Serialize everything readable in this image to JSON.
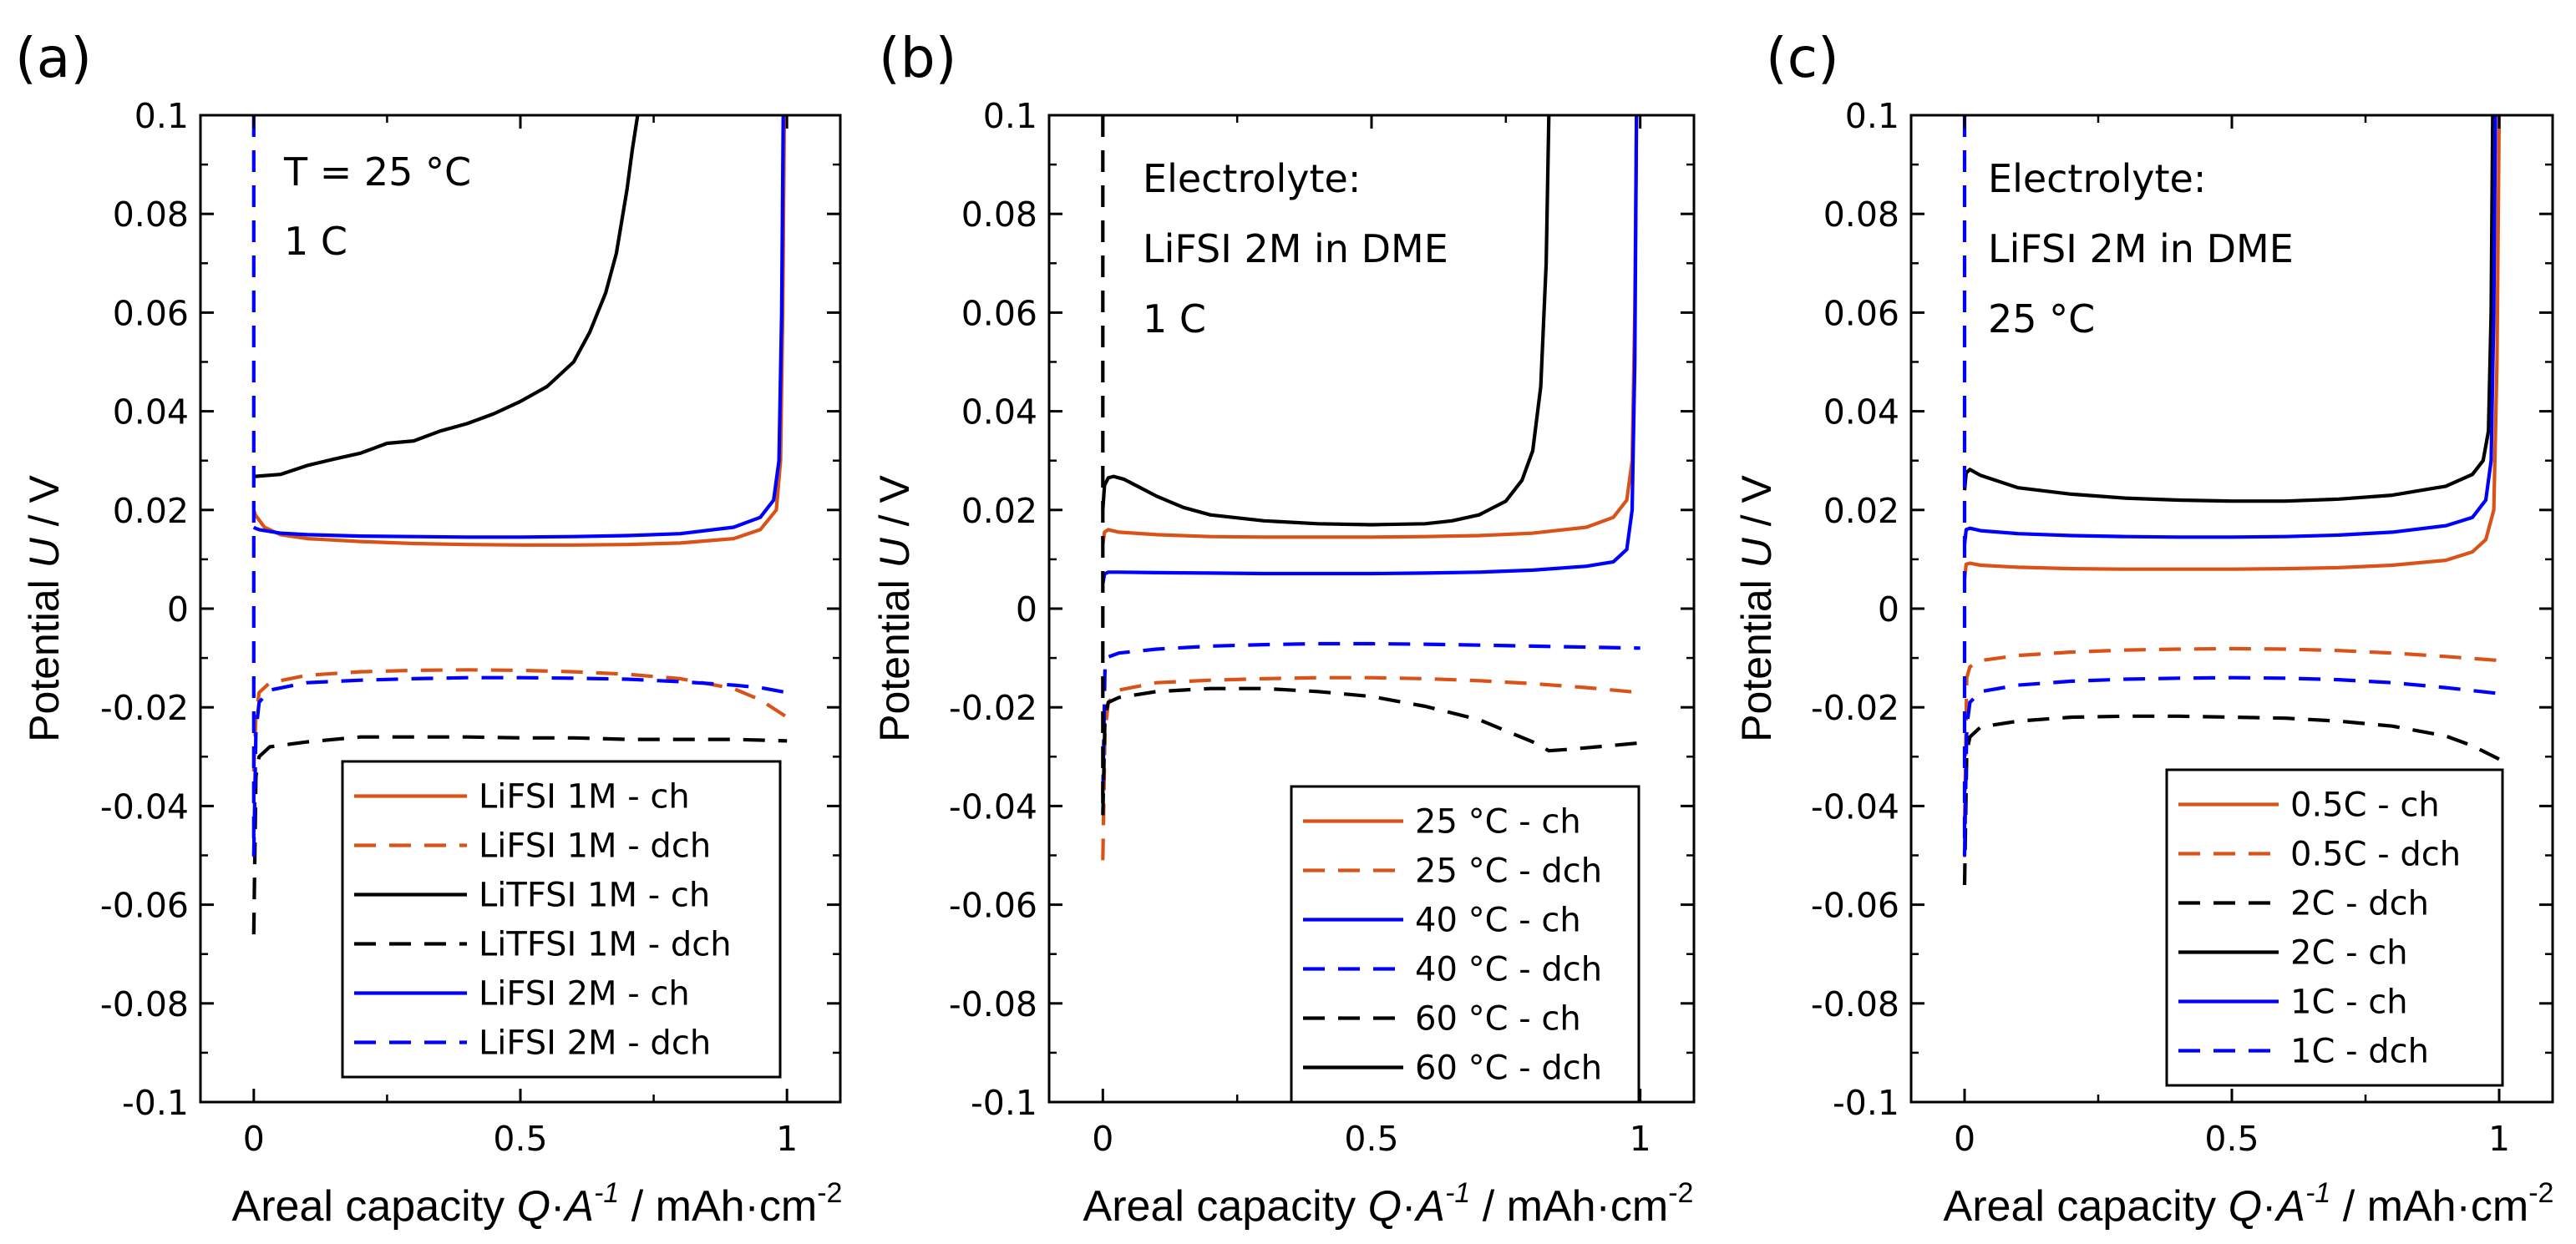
{
  "panels": [
    {
      "letter": "(a)",
      "ylabel_prefix": "Potential ",
      "ylabel_var": "U",
      "ylabel_unit": " / V",
      "xlabel_prefix": "Areal capacity ",
      "xlabel_var_q": "Q",
      "xlabel_dot": "·",
      "xlabel_var_a": "A",
      "xlabel_exp": "-1",
      "xlabel_unit": " / mAh·cm",
      "xlabel_unit_exp": "-2",
      "annotation": [
        "T = 25 °C",
        "1 C"
      ]
    },
    {
      "letter": "(b)",
      "ylabel_prefix": "Potential ",
      "ylabel_var": "U",
      "ylabel_unit": " / V",
      "xlabel_prefix": "Areal capacity ",
      "xlabel_var_q": "Q",
      "xlabel_dot": "·",
      "xlabel_var_a": "A",
      "xlabel_exp": "-1",
      "xlabel_unit": " / mAh·cm",
      "xlabel_unit_exp": "-2",
      "annotation": [
        "Electrolyte:",
        "LiFSI 2M in DME",
        "1 C"
      ]
    },
    {
      "letter": "(c)",
      "ylabel_prefix": "Potential ",
      "ylabel_var": "U",
      "ylabel_unit": " / V",
      "xlabel_prefix": "Areal capacity ",
      "xlabel_var_q": "Q",
      "xlabel_dot": "·",
      "xlabel_var_a": "A",
      "xlabel_exp": "-1",
      "xlabel_unit": " / mAh·cm",
      "xlabel_unit_exp": "-2",
      "annotation": [
        "Electrolyte:",
        "LiFSI 2M in DME",
        "25 °C"
      ]
    }
  ],
  "colors": {
    "orange": "#d95319",
    "black": "#000000",
    "blue": "#0000ff"
  },
  "chart_data": [
    {
      "type": "line",
      "title": "(a)",
      "xlabel": "Areal capacity Q·A-1 / mAh·cm-2",
      "ylabel": "Potential U / V",
      "xlim": [
        -0.1,
        1.1
      ],
      "ylim": [
        -0.1,
        0.1
      ],
      "xticks": [
        0,
        0.5,
        1
      ],
      "xtick_labels": [
        "0",
        "0.5",
        "1"
      ],
      "yticks": [
        -0.1,
        -0.08,
        -0.06,
        -0.04,
        -0.02,
        0,
        0.02,
        0.04,
        0.06,
        0.08,
        0.1
      ],
      "ytick_labels": [
        "-0.1",
        "-0.08",
        "-0.06",
        "-0.04",
        "-0.02",
        "0",
        "0.02",
        "0.04",
        "0.06",
        "0.08",
        "0.1"
      ],
      "legend_position": "bottom-right",
      "series": [
        {
          "name": "LiFSI 1M - ch",
          "color": "#d95319",
          "dash": "solid",
          "x": [
            0,
            0.003,
            0.02,
            0.05,
            0.1,
            0.2,
            0.3,
            0.4,
            0.5,
            0.6,
            0.7,
            0.8,
            0.9,
            0.95,
            0.98,
            0.988,
            0.992,
            0.995
          ],
          "y": [
            0.02,
            0.019,
            0.0165,
            0.015,
            0.0142,
            0.0136,
            0.0132,
            0.013,
            0.0129,
            0.0129,
            0.013,
            0.0133,
            0.0142,
            0.016,
            0.02,
            0.03,
            0.06,
            0.1
          ]
        },
        {
          "name": "LiFSI 1M - dch",
          "color": "#d95319",
          "dash": "dashed",
          "x": [
            0,
            0.004,
            0.01,
            0.03,
            0.1,
            0.2,
            0.3,
            0.4,
            0.5,
            0.6,
            0.7,
            0.8,
            0.9,
            0.95,
            1.0
          ],
          "y": [
            -0.033,
            -0.022,
            -0.017,
            -0.015,
            -0.0135,
            -0.0128,
            -0.0125,
            -0.0124,
            -0.0125,
            -0.0128,
            -0.0133,
            -0.0142,
            -0.0162,
            -0.0185,
            -0.022
          ]
        },
        {
          "name": "LiTFSI 1M - ch",
          "color": "#000000",
          "dash": "solid",
          "x": [
            0,
            0.002,
            0.05,
            0.1,
            0.15,
            0.2,
            0.25,
            0.3,
            0.35,
            0.4,
            0.45,
            0.5,
            0.55,
            0.6,
            0.63,
            0.66,
            0.68,
            0.7,
            0.71,
            0.72
          ],
          "y": [
            0.027,
            0.0268,
            0.0272,
            0.029,
            0.0303,
            0.0315,
            0.0335,
            0.034,
            0.036,
            0.0375,
            0.0395,
            0.042,
            0.045,
            0.05,
            0.056,
            0.064,
            0.072,
            0.085,
            0.093,
            0.1
          ]
        },
        {
          "name": "LiTFSI 1M - dch",
          "color": "#000000",
          "dash": "dashed",
          "x": [
            0,
            0.004,
            0.01,
            0.03,
            0.1,
            0.2,
            0.3,
            0.4,
            0.5,
            0.6,
            0.7,
            0.8,
            0.9,
            1.0
          ],
          "y": [
            -0.066,
            -0.034,
            -0.03,
            -0.028,
            -0.027,
            -0.026,
            -0.026,
            -0.026,
            -0.0262,
            -0.0262,
            -0.0265,
            -0.0265,
            -0.0265,
            -0.0268
          ]
        },
        {
          "name": "LiFSI 2M - ch",
          "color": "#0000ff",
          "dash": "solid",
          "x": [
            0,
            0.003,
            0.01,
            0.05,
            0.1,
            0.2,
            0.3,
            0.4,
            0.5,
            0.6,
            0.7,
            0.8,
            0.9,
            0.95,
            0.975,
            0.985,
            0.99,
            0.993
          ],
          "y": [
            0.0165,
            0.0163,
            0.016,
            0.0153,
            0.015,
            0.0147,
            0.0146,
            0.0145,
            0.0145,
            0.0146,
            0.0148,
            0.0152,
            0.0165,
            0.0185,
            0.022,
            0.03,
            0.06,
            0.1
          ]
        },
        {
          "name": "LiFSI 2M - dch",
          "color": "#0000ff",
          "dash": "dashed",
          "x": [
            0,
            0.0,
            0.004,
            0.01,
            0.03,
            0.1,
            0.2,
            0.3,
            0.4,
            0.5,
            0.6,
            0.7,
            0.8,
            0.9,
            0.95,
            1.0
          ],
          "y": [
            0.1,
            -0.05,
            -0.025,
            -0.019,
            -0.0165,
            -0.015,
            -0.0145,
            -0.0142,
            -0.014,
            -0.014,
            -0.0141,
            -0.0143,
            -0.0148,
            -0.0155,
            -0.016,
            -0.017
          ]
        }
      ]
    },
    {
      "type": "line",
      "title": "(b)",
      "xlabel": "Areal capacity Q·A-1 / mAh·cm-2",
      "ylabel": "Potential U / V",
      "xlim": [
        -0.1,
        1.1
      ],
      "ylim": [
        -0.1,
        0.1
      ],
      "xticks": [
        0,
        0.5,
        1
      ],
      "xtick_labels": [
        "0",
        "0.5",
        "1"
      ],
      "yticks": [
        -0.1,
        -0.08,
        -0.06,
        -0.04,
        -0.02,
        0,
        0.02,
        0.04,
        0.06,
        0.08,
        0.1
      ],
      "ytick_labels": [
        "-0.1",
        "-0.08",
        "-0.06",
        "-0.04",
        "-0.02",
        "0",
        "0.02",
        "0.04",
        "0.06",
        "0.08",
        "0.1"
      ],
      "legend_position": "bottom-right",
      "series": [
        {
          "name": "25 °C - ch",
          "color": "#d95319",
          "dash": "solid",
          "x": [
            0,
            0.003,
            0.01,
            0.03,
            0.1,
            0.2,
            0.3,
            0.4,
            0.5,
            0.6,
            0.7,
            0.8,
            0.9,
            0.95,
            0.975,
            0.985,
            0.99,
            0.993
          ],
          "y": [
            0.013,
            0.0155,
            0.016,
            0.0155,
            0.015,
            0.0146,
            0.0145,
            0.0145,
            0.0145,
            0.0146,
            0.0148,
            0.0153,
            0.0165,
            0.0185,
            0.022,
            0.03,
            0.06,
            0.1
          ]
        },
        {
          "name": "25 °C - dch",
          "color": "#d95319",
          "dash": "dashed",
          "x": [
            0,
            0.004,
            0.01,
            0.03,
            0.1,
            0.2,
            0.3,
            0.4,
            0.5,
            0.6,
            0.7,
            0.8,
            0.9,
            1.0
          ],
          "y": [
            -0.051,
            -0.025,
            -0.019,
            -0.0165,
            -0.015,
            -0.0145,
            -0.0142,
            -0.014,
            -0.014,
            -0.0142,
            -0.0146,
            -0.0152,
            -0.016,
            -0.017
          ]
        },
        {
          "name": "40 °C - ch",
          "color": "#0000ff",
          "dash": "solid",
          "x": [
            0,
            0.003,
            0.01,
            0.03,
            0.1,
            0.2,
            0.3,
            0.4,
            0.5,
            0.6,
            0.7,
            0.8,
            0.9,
            0.95,
            0.975,
            0.985,
            0.99,
            0.993
          ],
          "y": [
            0.005,
            0.007,
            0.0074,
            0.0074,
            0.0073,
            0.0072,
            0.0071,
            0.0071,
            0.0071,
            0.0072,
            0.0074,
            0.0078,
            0.0086,
            0.0095,
            0.012,
            0.02,
            0.05,
            0.1
          ]
        },
        {
          "name": "40 °C - dch",
          "color": "#0000ff",
          "dash": "dashed",
          "x": [
            0,
            0.004,
            0.01,
            0.03,
            0.1,
            0.2,
            0.3,
            0.4,
            0.5,
            0.6,
            0.7,
            0.8,
            0.9,
            1.0
          ],
          "y": [
            -0.038,
            -0.012,
            -0.0098,
            -0.009,
            -0.0082,
            -0.0076,
            -0.0073,
            -0.0071,
            -0.0071,
            -0.0072,
            -0.0074,
            -0.0076,
            -0.0078,
            -0.008
          ]
        },
        {
          "name": "60 °C - ch",
          "color": "#000000",
          "dash": "dashed",
          "x": [
            0,
            0.0,
            0.004,
            0.01,
            0.03,
            0.1,
            0.2,
            0.3,
            0.4,
            0.5,
            0.6,
            0.7,
            0.8,
            0.83,
            0.87,
            0.92,
            1.0
          ],
          "y": [
            0.1,
            -0.042,
            -0.022,
            -0.019,
            -0.018,
            -0.0168,
            -0.0162,
            -0.0162,
            -0.0168,
            -0.0178,
            -0.0198,
            -0.0225,
            -0.027,
            -0.0288,
            -0.0285,
            -0.028,
            -0.0272
          ]
        },
        {
          "name": "60 °C - dch",
          "color": "#000000",
          "dash": "solid",
          "x": [
            0,
            0.003,
            0.01,
            0.02,
            0.04,
            0.07,
            0.1,
            0.15,
            0.2,
            0.3,
            0.4,
            0.5,
            0.6,
            0.65,
            0.7,
            0.75,
            0.78,
            0.8,
            0.815,
            0.825,
            0.83
          ],
          "y": [
            0.02,
            0.025,
            0.0265,
            0.0268,
            0.0262,
            0.0245,
            0.0228,
            0.0205,
            0.019,
            0.0178,
            0.0172,
            0.017,
            0.0172,
            0.0178,
            0.019,
            0.0218,
            0.026,
            0.032,
            0.045,
            0.07,
            0.1
          ]
        }
      ]
    },
    {
      "type": "line",
      "title": "(c)",
      "xlabel": "Areal capacity Q·A-1 / mAh·cm-2",
      "ylabel": "Potential U / V",
      "xlim": [
        -0.1,
        1.1
      ],
      "ylim": [
        -0.1,
        0.1
      ],
      "xticks": [
        0,
        0.5,
        1
      ],
      "xtick_labels": [
        "0",
        "0.5",
        "1"
      ],
      "yticks": [
        -0.1,
        -0.08,
        -0.06,
        -0.04,
        -0.02,
        0,
        0.02,
        0.04,
        0.06,
        0.08,
        0.1
      ],
      "ytick_labels": [
        "-0.1",
        "-0.08",
        "-0.06",
        "-0.04",
        "-0.02",
        "0",
        "0.02",
        "0.04",
        "0.06",
        "0.08",
        "0.1"
      ],
      "legend_position": "bottom-right",
      "series": [
        {
          "name": "0.5C - ch",
          "color": "#d95319",
          "dash": "solid",
          "x": [
            0,
            0.003,
            0.01,
            0.03,
            0.1,
            0.2,
            0.3,
            0.4,
            0.5,
            0.6,
            0.7,
            0.8,
            0.9,
            0.95,
            0.975,
            0.99,
            0.996,
            1.0
          ],
          "y": [
            0.006,
            0.009,
            0.0092,
            0.0088,
            0.0084,
            0.0081,
            0.008,
            0.008,
            0.008,
            0.0081,
            0.0083,
            0.0088,
            0.0098,
            0.0115,
            0.014,
            0.02,
            0.05,
            0.1
          ]
        },
        {
          "name": "0.5C - dch",
          "color": "#d95319",
          "dash": "dashed",
          "x": [
            0,
            0.004,
            0.01,
            0.03,
            0.1,
            0.2,
            0.3,
            0.4,
            0.5,
            0.6,
            0.7,
            0.8,
            0.9,
            1.0
          ],
          "y": [
            -0.044,
            -0.014,
            -0.0118,
            -0.0105,
            -0.0095,
            -0.0088,
            -0.0084,
            -0.0082,
            -0.0081,
            -0.0082,
            -0.0085,
            -0.009,
            -0.0097,
            -0.0105
          ]
        },
        {
          "name": "2C - dch",
          "color": "#000000",
          "dash": "dashed",
          "x": [
            0,
            0.004,
            0.01,
            0.03,
            0.1,
            0.2,
            0.3,
            0.4,
            0.5,
            0.6,
            0.7,
            0.8,
            0.9,
            0.95,
            1.0
          ],
          "y": [
            -0.056,
            -0.029,
            -0.026,
            -0.024,
            -0.0228,
            -0.022,
            -0.0218,
            -0.0218,
            -0.022,
            -0.0222,
            -0.0228,
            -0.0238,
            -0.0258,
            -0.0278,
            -0.0305
          ]
        },
        {
          "name": "2C - ch",
          "color": "#000000",
          "dash": "solid",
          "x": [
            0,
            0.003,
            0.01,
            0.03,
            0.1,
            0.2,
            0.3,
            0.4,
            0.5,
            0.6,
            0.7,
            0.8,
            0.9,
            0.95,
            0.97,
            0.98,
            0.985,
            0.988
          ],
          "y": [
            0.024,
            0.0275,
            0.0282,
            0.027,
            0.0245,
            0.0232,
            0.0224,
            0.022,
            0.0218,
            0.0218,
            0.0222,
            0.023,
            0.0248,
            0.0272,
            0.03,
            0.036,
            0.06,
            0.1
          ]
        },
        {
          "name": "1C - ch",
          "color": "#0000ff",
          "dash": "solid",
          "x": [
            0,
            0.003,
            0.01,
            0.03,
            0.1,
            0.2,
            0.3,
            0.4,
            0.5,
            0.6,
            0.7,
            0.8,
            0.9,
            0.95,
            0.975,
            0.985,
            0.99,
            0.993
          ],
          "y": [
            0.013,
            0.016,
            0.0163,
            0.0158,
            0.0152,
            0.0148,
            0.0146,
            0.0145,
            0.0145,
            0.0146,
            0.0149,
            0.0155,
            0.0168,
            0.0185,
            0.022,
            0.03,
            0.06,
            0.1
          ]
        },
        {
          "name": "1C - dch",
          "color": "#0000ff",
          "dash": "dashed",
          "x": [
            0,
            0.0,
            0.004,
            0.01,
            0.03,
            0.1,
            0.2,
            0.3,
            0.4,
            0.5,
            0.6,
            0.7,
            0.8,
            0.9,
            1.0
          ],
          "y": [
            0.1,
            -0.05,
            -0.024,
            -0.019,
            -0.0168,
            -0.0155,
            -0.0147,
            -0.0143,
            -0.0141,
            -0.014,
            -0.0141,
            -0.0144,
            -0.015,
            -0.016,
            -0.0172
          ]
        }
      ]
    }
  ]
}
